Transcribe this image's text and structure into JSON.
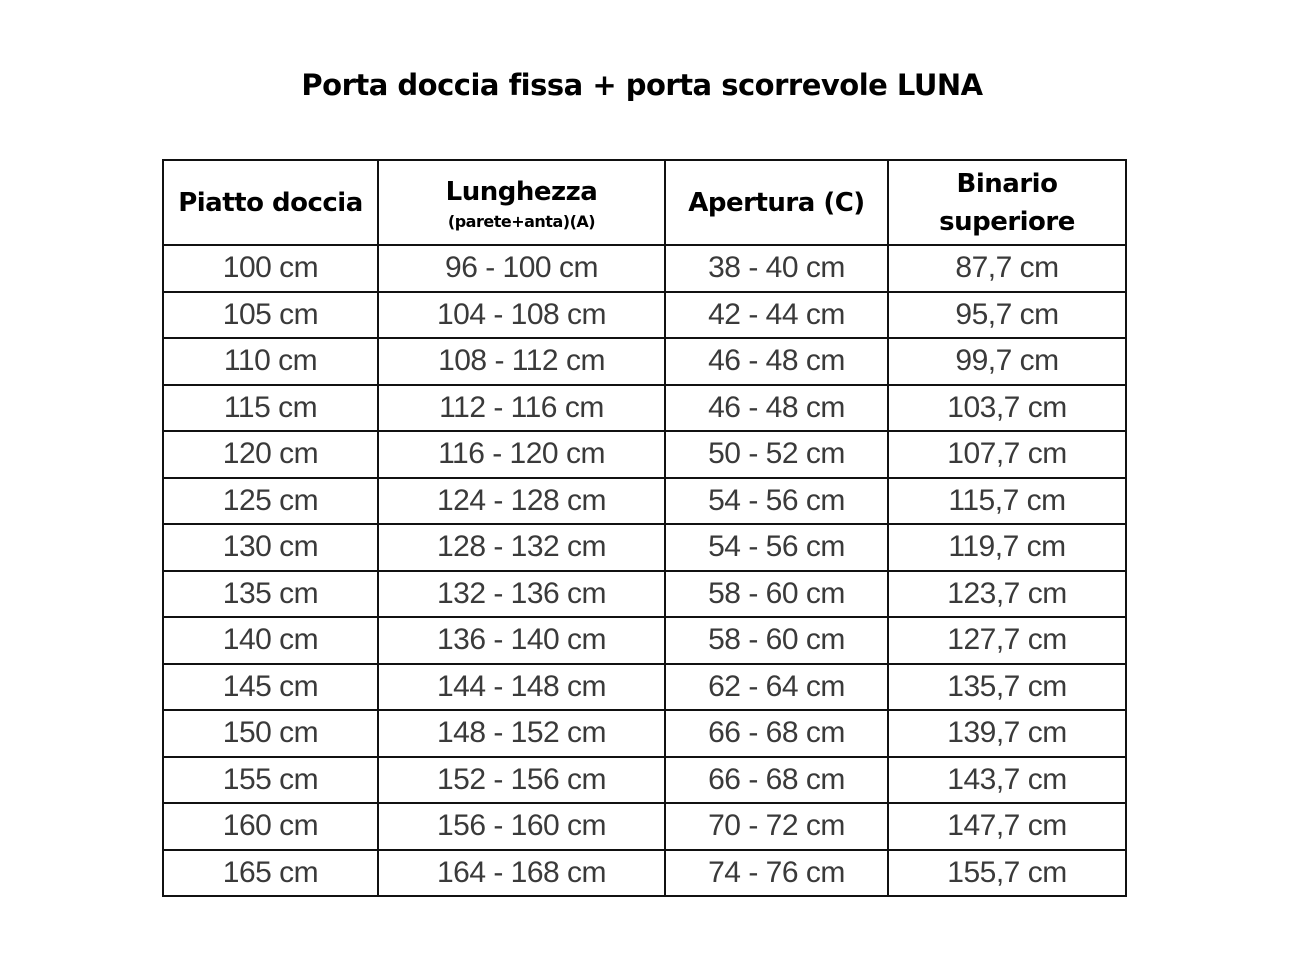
{
  "title": "Porta doccia fissa + porta scorrevole LUNA",
  "table": {
    "headers": [
      {
        "main": "Piatto doccia",
        "sub": ""
      },
      {
        "main": "Lunghezza",
        "sub": "(parete+anta)(A)"
      },
      {
        "main": "Apertura (C)",
        "sub": ""
      },
      {
        "main": "Binario superiore",
        "sub": ""
      }
    ],
    "rows": [
      [
        "100 cm",
        "96 - 100 cm",
        "38 - 40 cm",
        "87,7 cm"
      ],
      [
        "105 cm",
        "104 - 108 cm",
        "42 - 44 cm",
        "95,7 cm"
      ],
      [
        "110 cm",
        "108 - 112 cm",
        "46 - 48 cm",
        "99,7 cm"
      ],
      [
        "115 cm",
        "112 - 116 cm",
        "46 - 48 cm",
        "103,7 cm"
      ],
      [
        "120 cm",
        "116 - 120 cm",
        "50 - 52 cm",
        "107,7 cm"
      ],
      [
        "125 cm",
        "124 - 128 cm",
        "54 - 56 cm",
        "115,7 cm"
      ],
      [
        "130 cm",
        "128 - 132 cm",
        "54 - 56 cm",
        "119,7 cm"
      ],
      [
        "135 cm",
        "132 - 136 cm",
        "58 - 60 cm",
        "123,7 cm"
      ],
      [
        "140 cm",
        "136 - 140 cm",
        "58 - 60 cm",
        "127,7 cm"
      ],
      [
        "145 cm",
        "144 - 148 cm",
        "62 - 64 cm",
        "135,7 cm"
      ],
      [
        "150 cm",
        "148 - 152 cm",
        "66 - 68 cm",
        "139,7 cm"
      ],
      [
        "155 cm",
        "152 - 156 cm",
        "66 - 68 cm",
        "143,7 cm"
      ],
      [
        "160 cm",
        "156 - 160 cm",
        "70 - 72 cm",
        "147,7 cm"
      ],
      [
        "165 cm",
        "164 - 168 cm",
        "74 - 76 cm",
        "155,7 cm"
      ]
    ]
  }
}
